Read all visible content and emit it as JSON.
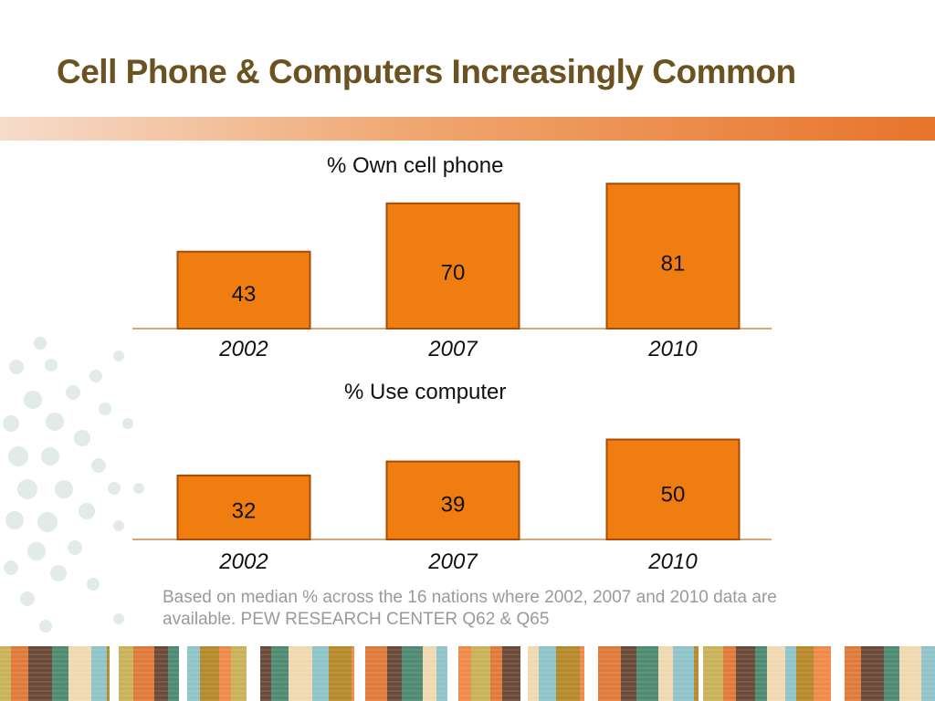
{
  "slide": {
    "title": "Cell Phone & Computers Increasingly Common",
    "footnote": "Based on median % across the 16 nations where 2002, 2007 and 2010 data are available. PEW RESEARCH CENTER Q62 & Q65"
  },
  "colors": {
    "title": "#6b5220",
    "bar_fill": "#ef7d0f",
    "bar_stroke": "#a94b07",
    "axis": "#c98a4a",
    "footnote": "#9a9a9a"
  },
  "chart_data": [
    {
      "type": "bar",
      "title": "% Own cell phone",
      "categories": [
        "2002",
        "2007",
        "2010"
      ],
      "values": [
        43,
        70,
        81
      ],
      "ylim": [
        0,
        100
      ],
      "xlabel": "",
      "ylabel": "",
      "grid": false
    },
    {
      "type": "bar",
      "title": "% Use computer",
      "categories": [
        "2002",
        "2007",
        "2010"
      ],
      "values": [
        32,
        39,
        50
      ],
      "ylim": [
        0,
        100
      ],
      "xlabel": "",
      "ylabel": "",
      "grid": false
    }
  ]
}
